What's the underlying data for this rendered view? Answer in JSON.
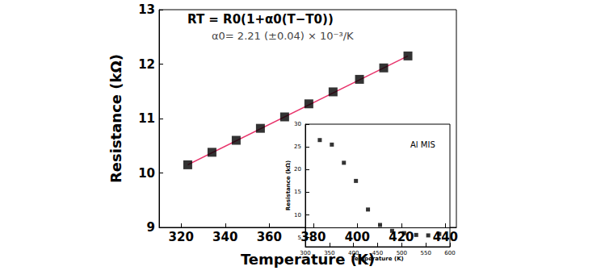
{
  "chart_data": [
    {
      "type": "scatter",
      "x_label": "Temperature (K)",
      "y_label": "Resistance (kΩ)",
      "annotations": [
        "RT = R0(1+α0(T−T0))",
        "α0= 2.21 (±0.04) × 10⁻³/K"
      ],
      "xlim": [
        310,
        445
      ],
      "xticks": [
        320,
        340,
        360,
        380,
        400,
        420,
        440
      ],
      "ylim": [
        9,
        13
      ],
      "yticks": [
        9,
        10,
        11,
        12,
        13
      ],
      "grid": false,
      "series": [
        {
          "type": "scatter",
          "marker": "square",
          "color": "#000000",
          "x": [
            323,
            334,
            345,
            356,
            367,
            378,
            389,
            401,
            412,
            423
          ],
          "values": [
            10.15,
            10.38,
            10.6,
            10.82,
            11.03,
            11.27,
            11.49,
            11.72,
            11.93,
            12.15
          ]
        },
        {
          "type": "line",
          "line_style": "solid",
          "color": "#e8336b",
          "x": [
            323,
            423
          ],
          "values": [
            10.15,
            12.15
          ]
        }
      ]
    },
    {
      "type": "scatter",
      "x_label": "Temperature (K)",
      "y_label": "Resistance (kΩ)",
      "annotations": [
        "Al MIS"
      ],
      "xlim": [
        300,
        600
      ],
      "xticks": [
        300,
        350,
        400,
        450,
        500,
        550,
        600
      ],
      "ylim": [
        3,
        30
      ],
      "yticks": [
        5,
        10,
        15,
        20,
        25,
        30
      ],
      "grid": false,
      "series": [
        {
          "type": "scatter",
          "marker": "square",
          "color": "#000000",
          "x": [
            330,
            355,
            380,
            405,
            430,
            455,
            480,
            505,
            530,
            555,
            578
          ],
          "values": [
            26.5,
            25.5,
            21.5,
            17.5,
            11.2,
            7.8,
            6.5,
            6.0,
            5.6,
            5.5,
            5.8
          ]
        }
      ]
    }
  ]
}
